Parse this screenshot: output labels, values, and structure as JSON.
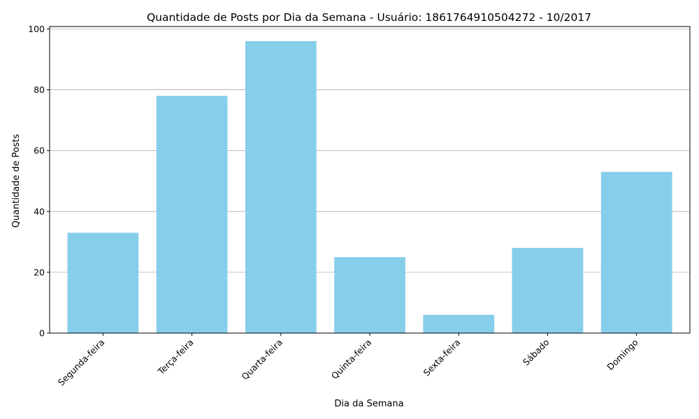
{
  "chart_data": {
    "type": "bar",
    "title": "Quantidade de Posts por Dia da Semana - Usuário: 1861764910504272 - 10/2017",
    "xlabel": "Dia da Semana",
    "ylabel": "Quantidade de Posts",
    "categories": [
      "Segunda-feira",
      "Terça-feira",
      "Quarta-feira",
      "Quinta-feira",
      "Sexta-feira",
      "Sábado",
      "Domingo"
    ],
    "values": [
      33,
      78,
      96,
      25,
      6,
      28,
      53
    ],
    "ylim": [
      0,
      100.8
    ],
    "yticks": [
      0,
      20,
      40,
      60,
      80,
      100
    ],
    "grid": "horizontal",
    "bar_color": "#87ceeb",
    "grid_color": "#b0b0b0",
    "axis_color": "#000000"
  }
}
